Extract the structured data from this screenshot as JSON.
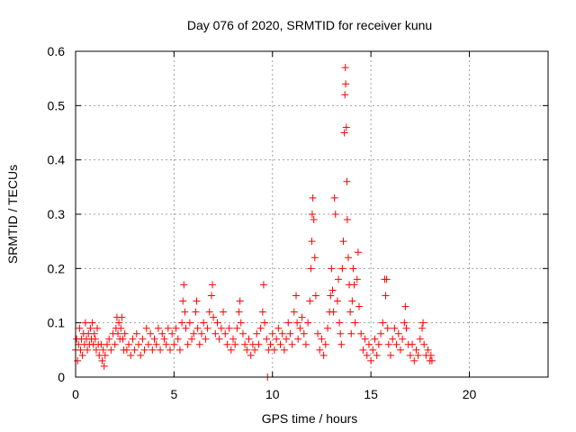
{
  "chart_data": {
    "type": "scatter",
    "title": "Day 076 of 2020, SRMTID for receiver kunu",
    "xlabel": "GPS time / hours",
    "ylabel": "SRMTID / TECUs",
    "xlim": [
      0,
      24
    ],
    "ylim": [
      0,
      0.6
    ],
    "xticks": [
      0,
      5,
      10,
      15,
      20
    ],
    "xtick_labels": [
      "0",
      "5",
      "10",
      "15",
      "20"
    ],
    "yticks": [
      0,
      0.1,
      0.2,
      0.3,
      0.4,
      0.5,
      0.6
    ],
    "ytick_labels": [
      "0",
      "0.1",
      "0.2",
      "0.3",
      "0.4",
      "0.5",
      "0.6"
    ],
    "grid": true,
    "marker": "+",
    "color": "#ff0000",
    "series": [
      {
        "name": "SRMTID",
        "points": [
          [
            0.0,
            0.05
          ],
          [
            0.05,
            0.07
          ],
          [
            0.1,
            0.03
          ],
          [
            0.15,
            0.06
          ],
          [
            0.2,
            0.09
          ],
          [
            0.25,
            0.05
          ],
          [
            0.3,
            0.07
          ],
          [
            0.35,
            0.04
          ],
          [
            0.4,
            0.08
          ],
          [
            0.45,
            0.06
          ],
          [
            0.5,
            0.1
          ],
          [
            0.55,
            0.07
          ],
          [
            0.6,
            0.05
          ],
          [
            0.65,
            0.08
          ],
          [
            0.7,
            0.06
          ],
          [
            0.75,
            0.09
          ],
          [
            0.8,
            0.07
          ],
          [
            0.85,
            0.1
          ],
          [
            0.9,
            0.06
          ],
          [
            0.95,
            0.08
          ],
          [
            1.0,
            0.07
          ],
          [
            1.05,
            0.05
          ],
          [
            1.1,
            0.09
          ],
          [
            1.15,
            0.06
          ],
          [
            1.2,
            0.04
          ],
          [
            1.3,
            0.06
          ],
          [
            1.35,
            0.03
          ],
          [
            1.4,
            0.05
          ],
          [
            1.45,
            0.02
          ],
          [
            1.5,
            0.04
          ],
          [
            1.6,
            0.06
          ],
          [
            1.7,
            0.07
          ],
          [
            1.8,
            0.05
          ],
          [
            1.9,
            0.08
          ],
          [
            2.0,
            0.06
          ],
          [
            2.05,
            0.09
          ],
          [
            2.1,
            0.11
          ],
          [
            2.15,
            0.08
          ],
          [
            2.2,
            0.1
          ],
          [
            2.25,
            0.07
          ],
          [
            2.3,
            0.09
          ],
          [
            2.35,
            0.11
          ],
          [
            2.4,
            0.07
          ],
          [
            2.45,
            0.05
          ],
          [
            2.5,
            0.08
          ],
          [
            2.6,
            0.05
          ],
          [
            2.7,
            0.06
          ],
          [
            2.8,
            0.04
          ],
          [
            2.9,
            0.07
          ],
          [
            3.0,
            0.05
          ],
          [
            3.1,
            0.08
          ],
          [
            3.2,
            0.06
          ],
          [
            3.3,
            0.04
          ],
          [
            3.4,
            0.07
          ],
          [
            3.5,
            0.05
          ],
          [
            3.6,
            0.09
          ],
          [
            3.7,
            0.06
          ],
          [
            3.8,
            0.08
          ],
          [
            3.9,
            0.05
          ],
          [
            4.0,
            0.07
          ],
          [
            4.1,
            0.06
          ],
          [
            4.2,
            0.09
          ],
          [
            4.3,
            0.05
          ],
          [
            4.4,
            0.08
          ],
          [
            4.5,
            0.07
          ],
          [
            4.6,
            0.06
          ],
          [
            4.7,
            0.09
          ],
          [
            4.8,
            0.05
          ],
          [
            4.9,
            0.08
          ],
          [
            5.0,
            0.06
          ],
          [
            5.1,
            0.09
          ],
          [
            5.2,
            0.07
          ],
          [
            5.3,
            0.05
          ],
          [
            5.4,
            0.1
          ],
          [
            5.45,
            0.14
          ],
          [
            5.5,
            0.17
          ],
          [
            5.55,
            0.12
          ],
          [
            5.6,
            0.09
          ],
          [
            5.7,
            0.06
          ],
          [
            5.8,
            0.1
          ],
          [
            5.9,
            0.07
          ],
          [
            6.0,
            0.08
          ],
          [
            6.1,
            0.12
          ],
          [
            6.15,
            0.14
          ],
          [
            6.2,
            0.09
          ],
          [
            6.3,
            0.06
          ],
          [
            6.4,
            0.08
          ],
          [
            6.5,
            0.1
          ],
          [
            6.6,
            0.07
          ],
          [
            6.7,
            0.09
          ],
          [
            6.8,
            0.12
          ],
          [
            6.9,
            0.15
          ],
          [
            6.95,
            0.17
          ],
          [
            7.0,
            0.11
          ],
          [
            7.1,
            0.08
          ],
          [
            7.2,
            0.1
          ],
          [
            7.3,
            0.07
          ],
          [
            7.4,
            0.09
          ],
          [
            7.5,
            0.12
          ],
          [
            7.6,
            0.08
          ],
          [
            7.7,
            0.06
          ],
          [
            7.8,
            0.09
          ],
          [
            7.9,
            0.05
          ],
          [
            8.0,
            0.07
          ],
          [
            8.1,
            0.06
          ],
          [
            8.2,
            0.09
          ],
          [
            8.3,
            0.12
          ],
          [
            8.35,
            0.14
          ],
          [
            8.4,
            0.1
          ],
          [
            8.5,
            0.08
          ],
          [
            8.6,
            0.06
          ],
          [
            8.7,
            0.05
          ],
          [
            8.8,
            0.07
          ],
          [
            8.9,
            0.04
          ],
          [
            9.0,
            0.06
          ],
          [
            9.1,
            0.05
          ],
          [
            9.2,
            0.08
          ],
          [
            9.3,
            0.06
          ],
          [
            9.4,
            0.09
          ],
          [
            9.5,
            0.12
          ],
          [
            9.55,
            0.17
          ],
          [
            9.6,
            0.1
          ],
          [
            9.7,
            0.07
          ],
          [
            9.75,
            0.0
          ],
          [
            9.8,
            0.05
          ],
          [
            9.9,
            0.06
          ],
          [
            10.0,
            0.08
          ],
          [
            10.1,
            0.05
          ],
          [
            10.2,
            0.07
          ],
          [
            10.3,
            0.09
          ],
          [
            10.4,
            0.06
          ],
          [
            10.5,
            0.08
          ],
          [
            10.6,
            0.05
          ],
          [
            10.7,
            0.07
          ],
          [
            10.8,
            0.1
          ],
          [
            10.9,
            0.08
          ],
          [
            11.0,
            0.06
          ],
          [
            11.1,
            0.12
          ],
          [
            11.2,
            0.15
          ],
          [
            11.25,
            0.1
          ],
          [
            11.3,
            0.07
          ],
          [
            11.4,
            0.09
          ],
          [
            11.5,
            0.11
          ],
          [
            11.6,
            0.08
          ],
          [
            11.7,
            0.06
          ],
          [
            11.8,
            0.1
          ],
          [
            11.9,
            0.14
          ],
          [
            11.95,
            0.2
          ],
          [
            12.0,
            0.25
          ],
          [
            12.02,
            0.3
          ],
          [
            12.05,
            0.33
          ],
          [
            12.1,
            0.29
          ],
          [
            12.15,
            0.22
          ],
          [
            12.2,
            0.15
          ],
          [
            12.3,
            0.08
          ],
          [
            12.4,
            0.05
          ],
          [
            12.5,
            0.07
          ],
          [
            12.6,
            0.04
          ],
          [
            12.7,
            0.06
          ],
          [
            12.8,
            0.09
          ],
          [
            12.9,
            0.12
          ],
          [
            12.95,
            0.15
          ],
          [
            13.0,
            0.2
          ],
          [
            13.05,
            0.16
          ],
          [
            13.1,
            0.12
          ],
          [
            13.15,
            0.33
          ],
          [
            13.2,
            0.3
          ],
          [
            13.3,
            0.14
          ],
          [
            13.35,
            0.18
          ],
          [
            13.4,
            0.1
          ],
          [
            13.45,
            0.08
          ],
          [
            13.5,
            0.06
          ],
          [
            13.55,
            0.2
          ],
          [
            13.6,
            0.25
          ],
          [
            13.65,
            0.45
          ],
          [
            13.68,
            0.52
          ],
          [
            13.7,
            0.57
          ],
          [
            13.72,
            0.54
          ],
          [
            13.75,
            0.46
          ],
          [
            13.78,
            0.36
          ],
          [
            13.8,
            0.29
          ],
          [
            13.85,
            0.22
          ],
          [
            13.9,
            0.17
          ],
          [
            13.95,
            0.12
          ],
          [
            14.0,
            0.08
          ],
          [
            14.05,
            0.14
          ],
          [
            14.1,
            0.2
          ],
          [
            14.15,
            0.17
          ],
          [
            14.2,
            0.1
          ],
          [
            14.3,
            0.18
          ],
          [
            14.35,
            0.23
          ],
          [
            14.4,
            0.13
          ],
          [
            14.5,
            0.08
          ],
          [
            14.6,
            0.05
          ],
          [
            14.7,
            0.07
          ],
          [
            14.8,
            0.04
          ],
          [
            14.9,
            0.06
          ],
          [
            15.0,
            0.03
          ],
          [
            15.1,
            0.05
          ],
          [
            15.2,
            0.07
          ],
          [
            15.3,
            0.04
          ],
          [
            15.4,
            0.06
          ],
          [
            15.5,
            0.08
          ],
          [
            15.6,
            0.1
          ],
          [
            15.7,
            0.18
          ],
          [
            15.75,
            0.15
          ],
          [
            15.8,
            0.18
          ],
          [
            15.85,
            0.09
          ],
          [
            15.9,
            0.06
          ],
          [
            16.0,
            0.04
          ],
          [
            16.1,
            0.07
          ],
          [
            16.2,
            0.09
          ],
          [
            16.3,
            0.06
          ],
          [
            16.4,
            0.08
          ],
          [
            16.5,
            0.05
          ],
          [
            16.6,
            0.07
          ],
          [
            16.7,
            0.1
          ],
          [
            16.75,
            0.13
          ],
          [
            16.8,
            0.09
          ],
          [
            16.9,
            0.06
          ],
          [
            17.0,
            0.04
          ],
          [
            17.1,
            0.06
          ],
          [
            17.2,
            0.03
          ],
          [
            17.3,
            0.05
          ],
          [
            17.4,
            0.04
          ],
          [
            17.5,
            0.07
          ],
          [
            17.6,
            0.09
          ],
          [
            17.65,
            0.1
          ],
          [
            17.7,
            0.06
          ],
          [
            17.8,
            0.04
          ],
          [
            17.9,
            0.05
          ],
          [
            18.0,
            0.03
          ],
          [
            18.05,
            0.04
          ],
          [
            18.1,
            0.03
          ]
        ]
      }
    ]
  }
}
